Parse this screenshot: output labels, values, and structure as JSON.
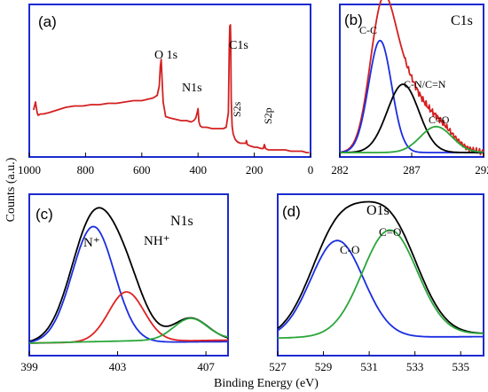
{
  "figure": {
    "x_axis_title": "Binding Energy (eV)",
    "y_axis_title": "Counts (a.u.)"
  },
  "colors": {
    "frame": "#1c2bd0",
    "survey": "#d42020",
    "envelope": "#000000",
    "blue": "#1a2ee0",
    "red": "#e02020",
    "green": "#2aa63a"
  },
  "chart_data": [
    {
      "panel": "(a)",
      "type": "line",
      "title": "",
      "xlim": [
        1000,
        0
      ],
      "ylim": [
        0,
        100
      ],
      "xticks": [
        1000,
        800,
        600,
        400,
        200,
        0
      ],
      "annotations": [
        {
          "text": "O 1s",
          "x": 531
        },
        {
          "text": "N1s",
          "x": 400
        },
        {
          "text": "C1s",
          "x": 285
        },
        {
          "text": "S2s",
          "x": 228
        },
        {
          "text": "S2p",
          "x": 164
        }
      ],
      "series": [
        {
          "color": "survey",
          "x": [
            985,
            980,
            978,
            975,
            972,
            968,
            960,
            950,
            930,
            900,
            870,
            840,
            810,
            780,
            750,
            720,
            690,
            660,
            630,
            600,
            580,
            560,
            545,
            538,
            534,
            531,
            528,
            524,
            515,
            500,
            480,
            460,
            440,
            425,
            415,
            408,
            402,
            400,
            397,
            392,
            385,
            370,
            350,
            330,
            310,
            300,
            292,
            289,
            287,
            285,
            284,
            282,
            279,
            275,
            268,
            260,
            250,
            240,
            230,
            228,
            225,
            215,
            200,
            190,
            175,
            168,
            164,
            160,
            150,
            130,
            110,
            90,
            70,
            50,
            30,
            15,
            5
          ],
          "y": [
            32,
            36,
            38,
            34,
            30,
            28,
            29,
            29,
            30,
            32,
            34,
            35,
            35,
            36,
            36,
            37,
            37,
            38,
            39,
            39,
            40,
            41,
            43,
            50,
            65,
            70,
            56,
            38,
            27,
            26,
            25,
            24,
            24,
            23,
            24,
            26,
            31,
            33,
            23,
            20,
            19,
            19,
            18,
            18,
            18,
            19,
            30,
            80,
            95,
            96,
            86,
            40,
            20,
            14,
            10,
            8,
            7,
            7,
            7,
            9,
            6,
            5,
            4,
            4,
            3,
            3,
            6,
            3,
            2,
            2,
            2,
            2,
            1,
            1,
            1,
            0,
            0
          ]
        }
      ]
    },
    {
      "panel": "(b)",
      "type": "line",
      "title": "C1s",
      "xlim": [
        282,
        292
      ],
      "ylim": [
        0,
        100
      ],
      "xticks": [
        282,
        287,
        292
      ],
      "annotations": [
        {
          "text": "C-C",
          "x": 284.9
        },
        {
          "text": "C-N/C=N",
          "x": 287.2
        },
        {
          "text": "C=O",
          "x": 289.2
        }
      ],
      "series": [
        {
          "color": "survey",
          "peaks": [
            [
              284.9,
              90,
              0.85
            ],
            [
              286.4,
              52,
              1.15
            ],
            [
              288.8,
              20,
              1.1
            ]
          ],
          "noise": true
        },
        {
          "color": "blue",
          "peaks": [
            [
              284.8,
              82,
              0.8
            ]
          ]
        },
        {
          "color": "envelope",
          "peaks": [
            [
              286.4,
              50,
              1.1
            ]
          ]
        },
        {
          "color": "green",
          "peaks": [
            [
              288.7,
              19,
              1.1
            ]
          ]
        }
      ]
    },
    {
      "panel": "(c)",
      "type": "line",
      "title": "N1s",
      "xlim": [
        399,
        408
      ],
      "ylim": [
        0,
        100
      ],
      "xticks": [
        399,
        403,
        407
      ],
      "annotations": [
        {
          "text": "N⁺",
          "x": 402.0
        },
        {
          "text": "NH⁺",
          "x": 403.5
        }
      ],
      "series": [
        {
          "color": "envelope",
          "peaks": [
            [
              401.9,
              80,
              1.0
            ],
            [
              403.4,
              34,
              0.85
            ],
            [
              406.3,
              15,
              0.8
            ]
          ],
          "baseline": [
            3,
            5
          ]
        },
        {
          "color": "blue",
          "peaks": [
            [
              401.9,
              77,
              0.95
            ]
          ],
          "baseline": [
            3,
            4
          ]
        },
        {
          "color": "red",
          "peaks": [
            [
              403.4,
              33,
              0.8
            ]
          ],
          "baseline": [
            3,
            5
          ]
        },
        {
          "color": "green",
          "peaks": [
            [
              406.3,
              14,
              0.75
            ]
          ],
          "baseline": [
            3,
            6
          ]
        }
      ]
    },
    {
      "panel": "(d)",
      "type": "line",
      "title": "O1s",
      "xlim": [
        527,
        536
      ],
      "ylim": [
        0,
        100
      ],
      "xticks": [
        527,
        529,
        531,
        533,
        535
      ],
      "annotations": [
        {
          "text": "C-O",
          "x": 529.7
        },
        {
          "text": "C=O",
          "x": 532.2
        }
      ],
      "series": [
        {
          "color": "envelope",
          "peaks": [
            [
              529.6,
              70,
              1.2
            ],
            [
              531.9,
              76,
              1.25
            ]
          ],
          "baseline": [
            3,
            6
          ]
        },
        {
          "color": "blue",
          "peaks": [
            [
              529.6,
              68,
              1.15
            ]
          ],
          "baseline": [
            3,
            4
          ]
        },
        {
          "color": "green",
          "peaks": [
            [
              531.9,
              74,
              1.2
            ]
          ],
          "baseline": [
            3,
            6
          ]
        }
      ]
    }
  ]
}
